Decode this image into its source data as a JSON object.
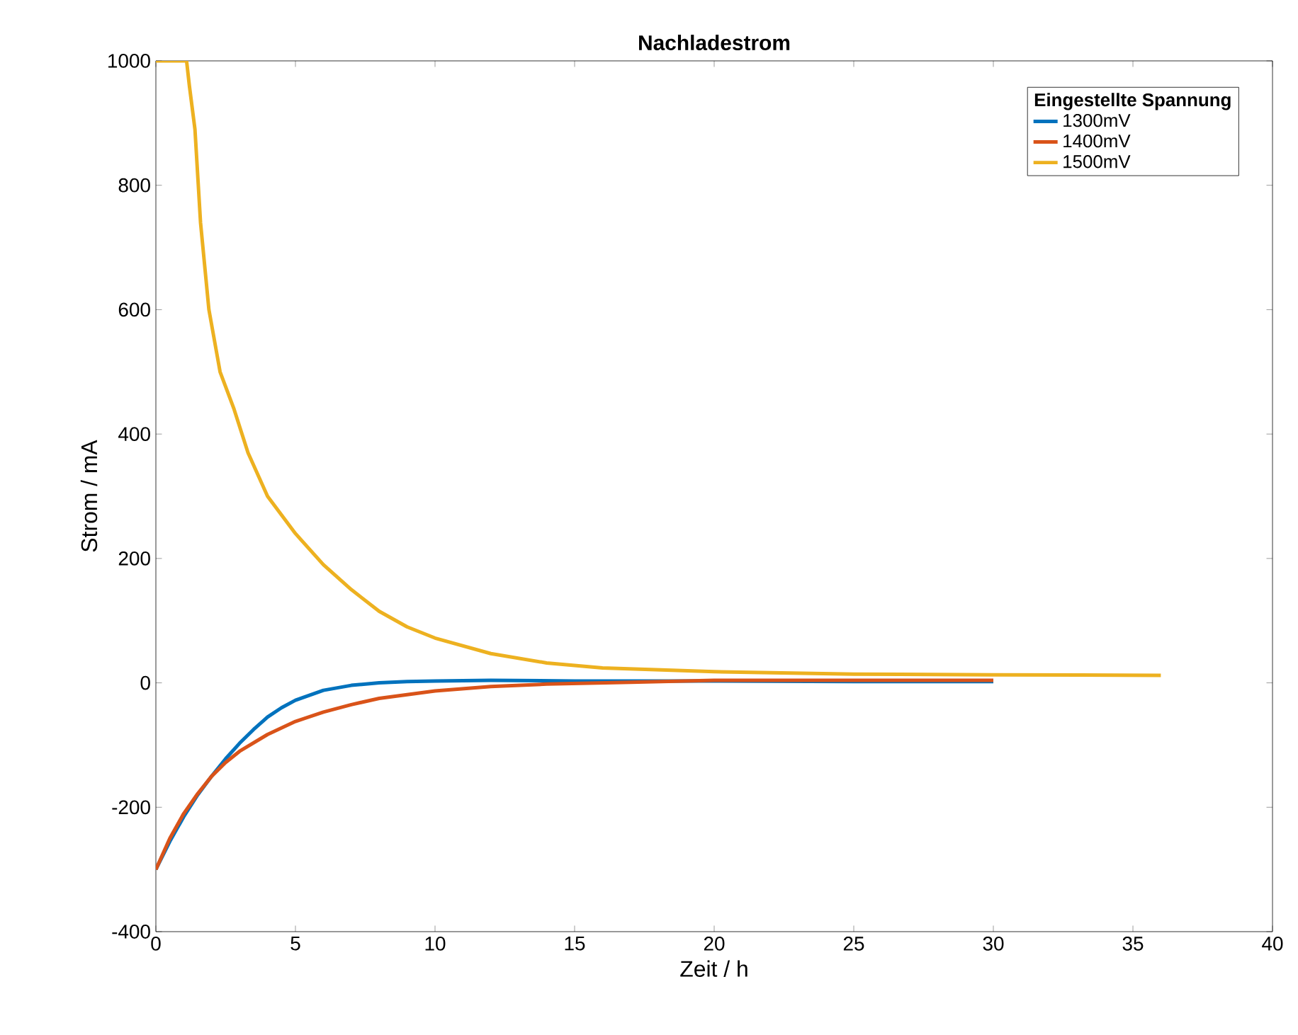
{
  "chart_data": {
    "type": "line",
    "title": "Nachladestrom",
    "xlabel": "Zeit / h",
    "ylabel": "Strom / mA",
    "legend_title": "Eingestellte Spannung",
    "legend": "top right",
    "xlim": [
      0,
      40
    ],
    "ylim": [
      -400,
      1000
    ],
    "xticks": [
      0,
      5,
      10,
      15,
      20,
      25,
      30,
      35,
      40
    ],
    "yticks": [
      -400,
      -200,
      0,
      200,
      400,
      600,
      800,
      1000
    ],
    "grid": false,
    "line_style": "solid",
    "marker": "none",
    "series": [
      {
        "name": "1300mV",
        "color": "#0072bd",
        "x": [
          0,
          0.5,
          1,
          1.5,
          2,
          2.5,
          3,
          3.5,
          4,
          4.5,
          5,
          6,
          7,
          8,
          9,
          10,
          12,
          15,
          20,
          25,
          30
        ],
        "values": [
          -300,
          -255,
          -215,
          -180,
          -150,
          -122,
          -97,
          -75,
          -55,
          -40,
          -28,
          -12,
          -4,
          0,
          2,
          3,
          4,
          3,
          3,
          2,
          2
        ]
      },
      {
        "name": "1400mV",
        "color": "#d95319",
        "x": [
          0,
          0.5,
          1,
          1.5,
          2,
          2.5,
          3,
          4,
          5,
          6,
          7,
          8,
          10,
          12,
          14,
          17,
          20,
          25,
          30
        ],
        "values": [
          -300,
          -250,
          -210,
          -178,
          -150,
          -128,
          -110,
          -83,
          -62,
          -47,
          -35,
          -25,
          -13,
          -6,
          -2,
          1,
          4,
          4,
          4
        ]
      },
      {
        "name": "1500mV",
        "color": "#edb120",
        "x": [
          0,
          1.1,
          1.2,
          1.4,
          1.6,
          1.9,
          2.3,
          2.8,
          3.3,
          4,
          5,
          6,
          7,
          8,
          9,
          10,
          12,
          14,
          16,
          20,
          25,
          30,
          36
        ],
        "values": [
          1000,
          1000,
          960,
          890,
          740,
          600,
          500,
          440,
          370,
          300,
          240,
          190,
          150,
          115,
          90,
          72,
          47,
          32,
          24,
          18,
          14,
          13,
          12
        ]
      }
    ]
  }
}
